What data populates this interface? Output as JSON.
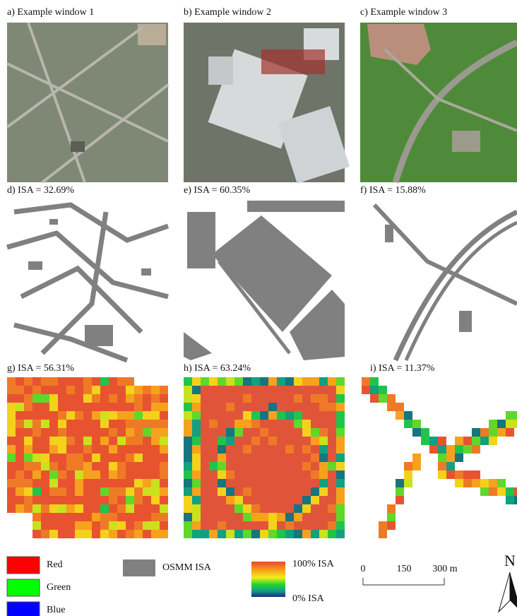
{
  "panels": [
    {
      "label": "a) Example window 1"
    },
    {
      "label": "b) Example window 2"
    },
    {
      "label": "c) Example window 3"
    },
    {
      "label": "d) ISA = 32.69%"
    },
    {
      "label": "e) ISA = 60.35%"
    },
    {
      "label": "f) ISA = 15.88%"
    },
    {
      "label": "g) ISA = 56.31%"
    },
    {
      "label": "h) ISA = 63.24%"
    },
    {
      "label": "i) ISA = 11.37%"
    }
  ],
  "legend": {
    "bands": [
      "Red",
      "Green",
      "Blue"
    ],
    "osmm": "OSMM ISA",
    "ramp_high": "100% ISA",
    "ramp_low": "0% ISA"
  },
  "scale_bar": {
    "labels": [
      "0",
      "150",
      "300 m"
    ]
  },
  "north": "N"
}
